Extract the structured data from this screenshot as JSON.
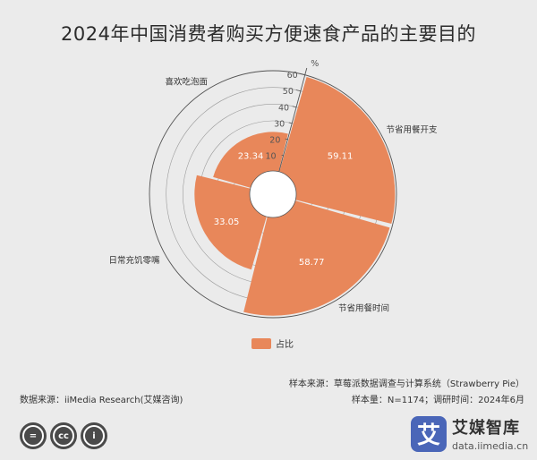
{
  "title": "2024年中国消费者购买方便速食产品的主要目的",
  "chart_data": {
    "type": "bar",
    "subtype": "polar-rose",
    "categories": [
      "节省用餐开支",
      "节省用餐时间",
      "日常充饥零嘴",
      "喜欢吃泡面"
    ],
    "series": [
      {
        "name": "占比",
        "values": [
          59.11,
          58.77,
          33.05,
          23.34
        ]
      }
    ],
    "axis_unit": "%",
    "radial_ticks": [
      10,
      20,
      30,
      40,
      50,
      60
    ],
    "rlim": [
      0,
      60
    ],
    "grid": true,
    "legend_position": "bottom",
    "color": "#e8875a"
  },
  "source": {
    "sample_source": "样本来源：草莓派数据调查与计算系统（Strawberry Pie）",
    "data_source": "数据来源：iiMedia Research(艾媒咨询)",
    "sample_size": "样本量：N=1174；调研时间：2024年6月"
  },
  "brand": {
    "logo_char": "艾",
    "name": "艾媒智库",
    "url": "data.iimedia.cn"
  },
  "license_icons": [
    "equals-icon",
    "cc-icon",
    "person-icon"
  ],
  "license_labels": [
    "=",
    "cc",
    "i"
  ]
}
